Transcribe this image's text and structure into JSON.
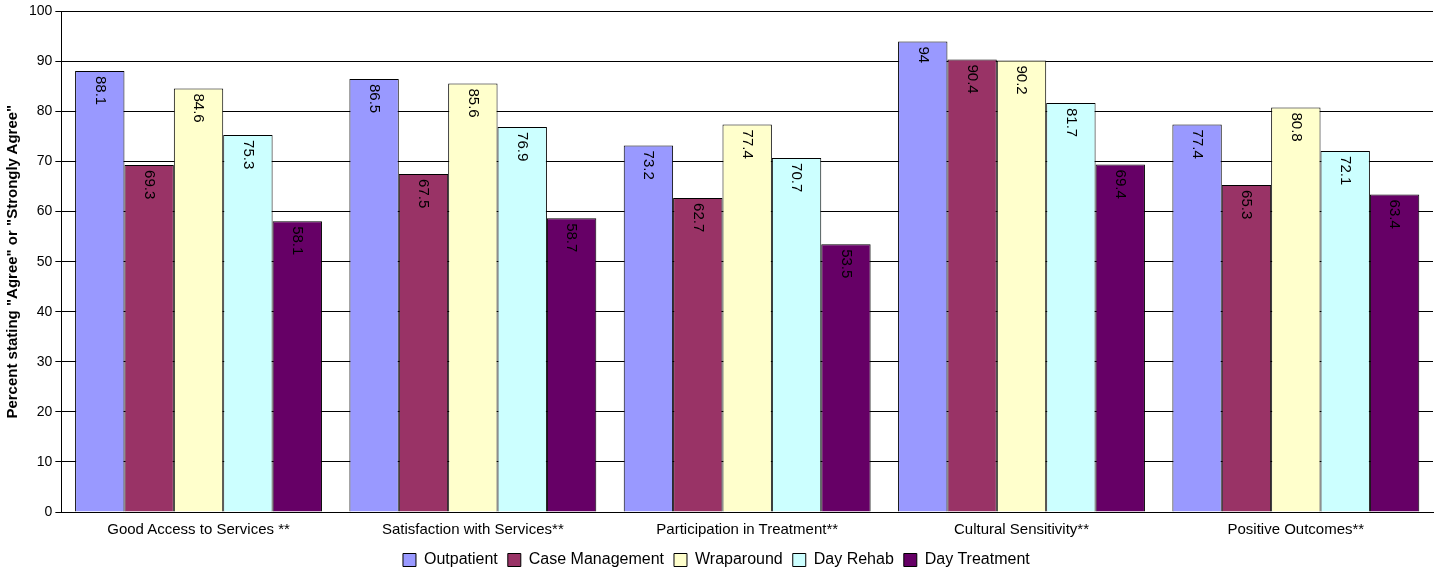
{
  "chart_data": {
    "type": "bar",
    "ylabel": "Percent stating \"Agree\" or \"Strongly Agree\"",
    "categories": [
      "Good Access to Services **",
      "Satisfaction with Services**",
      "Participation in Treatment**",
      "Cultural Sensitivity**",
      "Positive Outcomes**"
    ],
    "series": [
      {
        "name": "Outpatient",
        "color": "#9999ff",
        "values": [
          88.1,
          86.5,
          73.2,
          94,
          77.4
        ]
      },
      {
        "name": "Case Management",
        "color": "#993366",
        "values": [
          69.3,
          67.5,
          62.7,
          90.4,
          65.3
        ]
      },
      {
        "name": "Wraparound",
        "color": "#ffffcc",
        "values": [
          84.6,
          85.6,
          77.4,
          90.2,
          80.8
        ]
      },
      {
        "name": "Day Rehab",
        "color": "#ccffff",
        "values": [
          75.3,
          76.9,
          70.7,
          81.7,
          72.1
        ]
      },
      {
        "name": "Day Treatment",
        "color": "#660066",
        "values": [
          58.1,
          58.7,
          53.5,
          69.4,
          63.4
        ]
      }
    ],
    "ylim": [
      0,
      100
    ],
    "yticks": [
      0,
      10,
      20,
      30,
      40,
      50,
      60,
      70,
      80,
      90,
      100
    ],
    "grid": "y",
    "legend": "bottom",
    "data_labels": true
  }
}
